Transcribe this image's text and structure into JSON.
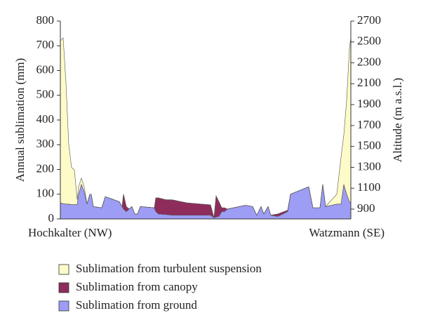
{
  "chart_data": {
    "type": "stacked-area",
    "ylabel": "Annual sublimation (mm)",
    "y2label": "Altitude (m a.s.l.)",
    "annotations": [
      "Hochkalter (NW)",
      "Watzmann (SE)"
    ],
    "x": [
      0,
      4,
      8,
      12,
      16,
      20,
      24,
      26,
      30,
      34,
      38,
      42,
      44,
      47,
      59,
      64,
      74,
      84,
      88,
      90,
      94,
      98,
      102,
      106,
      110,
      114,
      134,
      136,
      140,
      150,
      160,
      180,
      200,
      214,
      219,
      222,
      226,
      230,
      234,
      238,
      264,
      274,
      280,
      286,
      290,
      296,
      300,
      310,
      324,
      328,
      354,
      360,
      370,
      374,
      378,
      394,
      400,
      404,
      408,
      412,
      414
    ],
    "xlim": [
      0,
      414
    ],
    "ylim": [
      0,
      800
    ],
    "yticks": [
      0,
      100,
      200,
      300,
      400,
      500,
      600,
      700,
      800
    ],
    "y2lim": [
      806,
      2700
    ],
    "y2ticks": [
      900,
      1100,
      1300,
      1500,
      1700,
      1900,
      2100,
      2300,
      2500,
      2700
    ],
    "series": [
      {
        "name": "Sublimation from ground",
        "color": "#9d9df5",
        "values": [
          65,
          62,
          60,
          60,
          58,
          58,
          58,
          100,
          140,
          110,
          60,
          100,
          100,
          50,
          45,
          90,
          80,
          70,
          50,
          40,
          30,
          40,
          50,
          20,
          20,
          50,
          45,
          30,
          20,
          18,
          15,
          15,
          15,
          15,
          5,
          8,
          10,
          30,
          30,
          40,
          55,
          50,
          15,
          50,
          20,
          50,
          15,
          10,
          30,
          100,
          130,
          45,
          45,
          140,
          50,
          60,
          60,
          140,
          100,
          70,
          65
        ]
      },
      {
        "name": "Sublimation from canopy",
        "color": "#8e2d5c",
        "values": [
          0,
          0,
          0,
          0,
          0,
          0,
          0,
          0,
          0,
          0,
          0,
          0,
          0,
          0,
          0,
          0,
          0,
          0,
          0,
          60,
          20,
          0,
          0,
          0,
          0,
          0,
          0,
          55,
          65,
          60,
          62,
          50,
          45,
          42,
          0,
          85,
          60,
          15,
          15,
          0,
          0,
          0,
          0,
          0,
          0,
          0,
          0,
          10,
          5,
          0,
          0,
          0,
          0,
          0,
          0,
          0,
          0,
          0,
          0,
          0,
          0
        ]
      },
      {
        "name": "Sublimation from turbulent suspension",
        "color": "#fdfbc8",
        "values": [
          655,
          670,
          490,
          240,
          150,
          140,
          20,
          30,
          25,
          20,
          0,
          0,
          0,
          0,
          0,
          0,
          0,
          0,
          0,
          0,
          0,
          0,
          0,
          0,
          0,
          0,
          0,
          0,
          0,
          0,
          0,
          0,
          0,
          0,
          0,
          0,
          0,
          0,
          0,
          0,
          0,
          0,
          0,
          0,
          0,
          0,
          0,
          0,
          0,
          0,
          0,
          0,
          0,
          0,
          0,
          40,
          190,
          200,
          380,
          620,
          670
        ]
      }
    ]
  }
}
